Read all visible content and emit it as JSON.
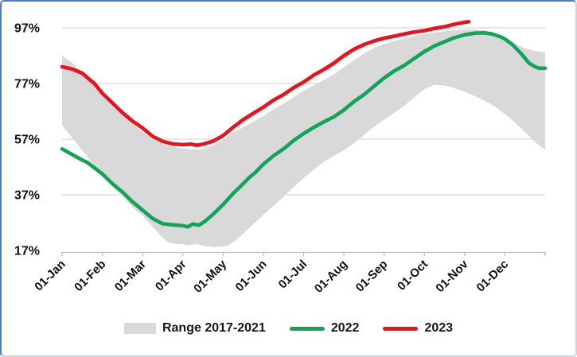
{
  "chart_data": {
    "type": "line",
    "title": "",
    "grid": "horizontal",
    "legend_position": "bottom",
    "x_axis": {
      "ticks": [
        "01-Jan",
        "01-Feb",
        "01-Mar",
        "01-Apr",
        "01-May",
        "01-Jun",
        "01-Jul",
        "01-Aug",
        "01-Sep",
        "01-Oct",
        "01-Nov",
        "01-Dec"
      ],
      "unit": "month-start dates, labels rotated 45deg"
    },
    "y_axis": {
      "tick_labels": [
        "97%",
        "77%",
        "57%",
        "37%",
        "17%"
      ],
      "tick_values": [
        97,
        77,
        57,
        37,
        17
      ],
      "range": [
        17,
        99.5
      ]
    },
    "axis_color": "#bfbfbf",
    "grid_color": "#d9d9d9",
    "series": [
      {
        "name": "Range 2017-2021",
        "type": "band",
        "color": "#d9d9d9",
        "x_unit": "months_after_jan1",
        "points_upper": [
          [
            0,
            87
          ],
          [
            0.25,
            84.5
          ],
          [
            0.5,
            80.5
          ],
          [
            0.75,
            76.8
          ],
          [
            1,
            72.5
          ],
          [
            1.25,
            69
          ],
          [
            1.5,
            65.5
          ],
          [
            1.75,
            62.5
          ],
          [
            2,
            59.5
          ],
          [
            2.25,
            57
          ],
          [
            2.5,
            55.2
          ],
          [
            2.75,
            54.2
          ],
          [
            3,
            53.6
          ],
          [
            3.25,
            53.4
          ],
          [
            3.45,
            53.2
          ],
          [
            3.65,
            54.3
          ],
          [
            3.85,
            55.5
          ],
          [
            4,
            56.8
          ],
          [
            4.25,
            59.3
          ],
          [
            4.5,
            61.3
          ],
          [
            4.75,
            63.3
          ],
          [
            5,
            65.3
          ],
          [
            5.25,
            67.8
          ],
          [
            5.5,
            69.8
          ],
          [
            5.75,
            72
          ],
          [
            6,
            74.3
          ],
          [
            6.25,
            76.3
          ],
          [
            6.5,
            78.3
          ],
          [
            6.75,
            80.3
          ],
          [
            7,
            82.8
          ],
          [
            7.25,
            85.3
          ],
          [
            7.5,
            87.8
          ],
          [
            7.75,
            89.8
          ],
          [
            8,
            91.2
          ],
          [
            8.25,
            92.2
          ],
          [
            8.5,
            93.2
          ],
          [
            8.75,
            94
          ],
          [
            9,
            94.8
          ],
          [
            9.25,
            95.3
          ],
          [
            9.5,
            95.8
          ],
          [
            9.75,
            96.2
          ],
          [
            10,
            96.4
          ],
          [
            10.25,
            96.4
          ],
          [
            10.5,
            96.1
          ],
          [
            10.75,
            95.2
          ],
          [
            11,
            93.4
          ],
          [
            11.2,
            91.8
          ],
          [
            11.4,
            90.2
          ],
          [
            11.6,
            89.2
          ],
          [
            11.8,
            88.6
          ],
          [
            12,
            88.3
          ]
        ],
        "points_lower": [
          [
            0,
            62
          ],
          [
            0.25,
            57.5
          ],
          [
            0.5,
            53
          ],
          [
            0.75,
            48.5
          ],
          [
            1,
            44
          ],
          [
            1.25,
            40
          ],
          [
            1.5,
            36.5
          ],
          [
            1.75,
            32.5
          ],
          [
            2,
            29.5
          ],
          [
            2.25,
            25.5
          ],
          [
            2.5,
            21.5
          ],
          [
            2.65,
            19.8
          ],
          [
            2.8,
            19.3
          ],
          [
            3,
            19.2
          ],
          [
            3.15,
            18.8
          ],
          [
            3.3,
            19.3
          ],
          [
            3.45,
            18.9
          ],
          [
            3.6,
            18.5
          ],
          [
            3.8,
            18.2
          ],
          [
            4,
            18.4
          ],
          [
            4.15,
            19
          ],
          [
            4.3,
            20.5
          ],
          [
            4.5,
            23
          ],
          [
            4.75,
            26.5
          ],
          [
            5,
            29.8
          ],
          [
            5.25,
            33
          ],
          [
            5.5,
            36.3
          ],
          [
            5.75,
            39.8
          ],
          [
            6,
            43
          ],
          [
            6.25,
            46
          ],
          [
            6.5,
            48.8
          ],
          [
            6.75,
            51
          ],
          [
            7,
            53
          ],
          [
            7.25,
            55.5
          ],
          [
            7.5,
            58.5
          ],
          [
            7.75,
            61.5
          ],
          [
            8,
            64
          ],
          [
            8.25,
            66.5
          ],
          [
            8.5,
            69
          ],
          [
            8.75,
            72
          ],
          [
            9,
            75
          ],
          [
            9.25,
            76.5
          ],
          [
            9.5,
            76.3
          ],
          [
            9.75,
            75.3
          ],
          [
            10,
            74
          ],
          [
            10.25,
            72.5
          ],
          [
            10.5,
            70.8
          ],
          [
            10.75,
            68.8
          ],
          [
            11,
            66
          ],
          [
            11.25,
            63
          ],
          [
            11.5,
            59.5
          ],
          [
            11.75,
            56
          ],
          [
            11.9,
            54.2
          ],
          [
            12,
            53.3
          ]
        ]
      },
      {
        "name": "2022",
        "type": "line",
        "color": "#12a457",
        "x_unit": "months_after_jan1",
        "points": [
          [
            0,
            53.5
          ],
          [
            0.25,
            51.5
          ],
          [
            0.5,
            49.5
          ],
          [
            0.62,
            48.7
          ],
          [
            0.75,
            47.3
          ],
          [
            1,
            44.5
          ],
          [
            1.25,
            41
          ],
          [
            1.5,
            38
          ],
          [
            1.75,
            34.5
          ],
          [
            2,
            31.5
          ],
          [
            2.25,
            28.5
          ],
          [
            2.5,
            26.6
          ],
          [
            2.75,
            26.2
          ],
          [
            3,
            25.9
          ],
          [
            3.12,
            25.5
          ],
          [
            3.25,
            26.5
          ],
          [
            3.4,
            26.1
          ],
          [
            3.55,
            27.5
          ],
          [
            3.75,
            30
          ],
          [
            4,
            33.5
          ],
          [
            4.25,
            37.5
          ],
          [
            4.5,
            41
          ],
          [
            4.65,
            43.2
          ],
          [
            4.8,
            45
          ],
          [
            5,
            48
          ],
          [
            5.25,
            51
          ],
          [
            5.5,
            53.5
          ],
          [
            5.75,
            56.5
          ],
          [
            6,
            59
          ],
          [
            6.25,
            61.2
          ],
          [
            6.5,
            63.2
          ],
          [
            6.75,
            65
          ],
          [
            7,
            67.5
          ],
          [
            7.25,
            70.5
          ],
          [
            7.5,
            73
          ],
          [
            7.75,
            76
          ],
          [
            8,
            79
          ],
          [
            8.25,
            81.5
          ],
          [
            8.5,
            83.5
          ],
          [
            8.75,
            86
          ],
          [
            9,
            88.5
          ],
          [
            9.25,
            90.5
          ],
          [
            9.5,
            92
          ],
          [
            9.75,
            93.5
          ],
          [
            10,
            94.5
          ],
          [
            10.25,
            95.1
          ],
          [
            10.5,
            95.2
          ],
          [
            10.7,
            94.7
          ],
          [
            10.9,
            93.7
          ],
          [
            11,
            93
          ],
          [
            11.2,
            90.8
          ],
          [
            11.4,
            87.8
          ],
          [
            11.6,
            84.3
          ],
          [
            11.75,
            83
          ],
          [
            11.85,
            82.5
          ],
          [
            12,
            82.5
          ]
        ]
      },
      {
        "name": "2023",
        "type": "line",
        "color": "#e8131d",
        "x_unit": "months_after_jan1",
        "points": [
          [
            0,
            83
          ],
          [
            0.25,
            82.2
          ],
          [
            0.5,
            80.7
          ],
          [
            0.65,
            78.8
          ],
          [
            0.8,
            77
          ],
          [
            1,
            73.5
          ],
          [
            1.25,
            70
          ],
          [
            1.5,
            66.5
          ],
          [
            1.75,
            63.5
          ],
          [
            2,
            61
          ],
          [
            2.25,
            58
          ],
          [
            2.5,
            56.2
          ],
          [
            2.75,
            55.3
          ],
          [
            3,
            55
          ],
          [
            3.2,
            55.2
          ],
          [
            3.35,
            54.8
          ],
          [
            3.5,
            55.2
          ],
          [
            3.75,
            56.3
          ],
          [
            4,
            58.3
          ],
          [
            4.25,
            61.3
          ],
          [
            4.5,
            64
          ],
          [
            4.75,
            66.3
          ],
          [
            5,
            68.5
          ],
          [
            5.25,
            71
          ],
          [
            5.5,
            73
          ],
          [
            5.75,
            75.5
          ],
          [
            6,
            77.5
          ],
          [
            6.25,
            80
          ],
          [
            6.5,
            82
          ],
          [
            6.75,
            84.3
          ],
          [
            7,
            87
          ],
          [
            7.25,
            89.3
          ],
          [
            7.5,
            91
          ],
          [
            7.75,
            92.3
          ],
          [
            8,
            93.3
          ],
          [
            8.25,
            94
          ],
          [
            8.5,
            94.8
          ],
          [
            8.75,
            95.5
          ],
          [
            9,
            96
          ],
          [
            9.25,
            96.8
          ],
          [
            9.5,
            97.4
          ],
          [
            9.75,
            98.3
          ],
          [
            9.9,
            98.7
          ],
          [
            10,
            99
          ],
          [
            10.1,
            99.2
          ]
        ]
      }
    ]
  }
}
